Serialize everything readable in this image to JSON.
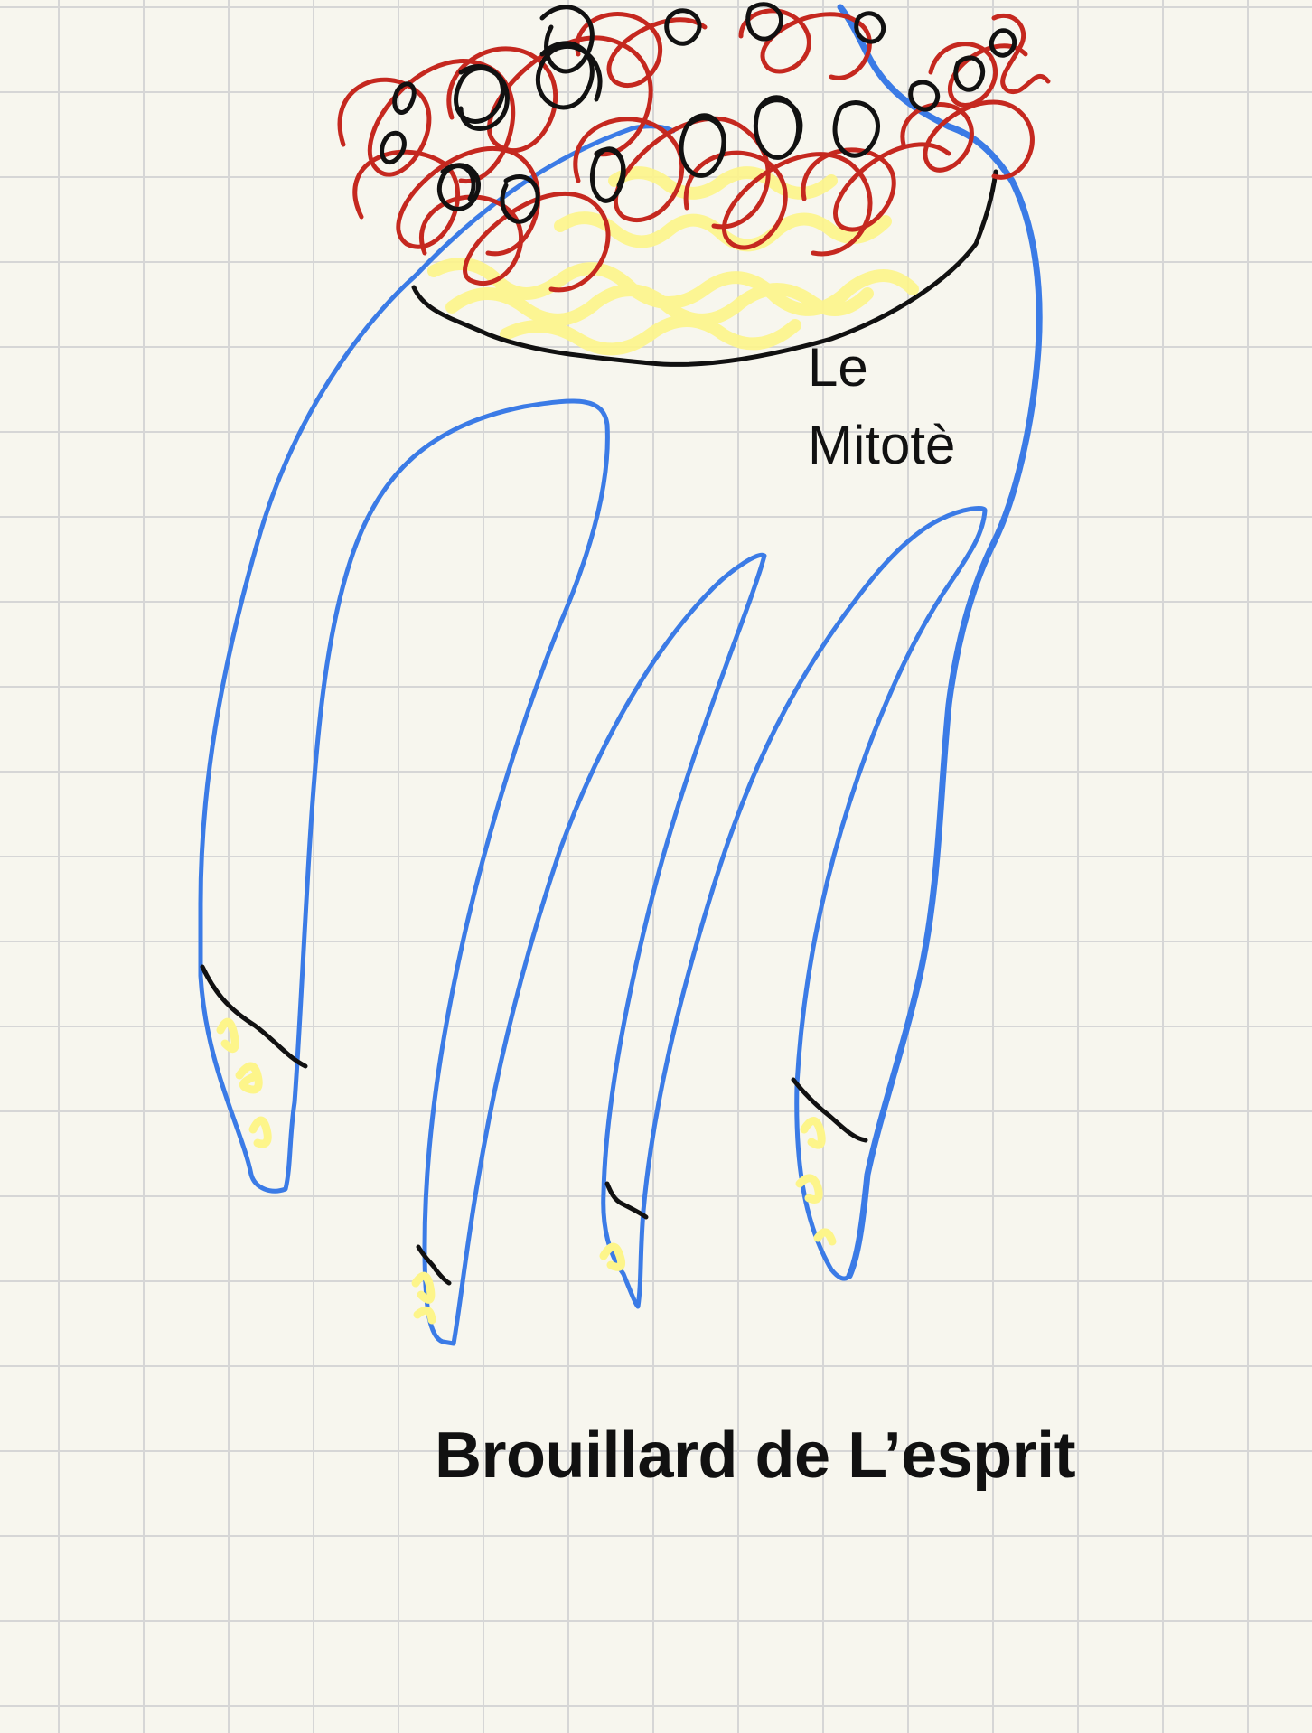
{
  "canvas": {
    "background": "#f7f6ee",
    "grid_color": "#d6d6d6"
  },
  "drawing": {
    "subject": "hand-drawing-icon",
    "hand_color": "#3b7be6",
    "hair_red": "#c5281f",
    "hair_black": "#111111",
    "highlight_yellow": "#fdf58a"
  },
  "labels": {
    "mitote": "Le\nMitotè",
    "caption": "Brouillard de L’esprit"
  }
}
